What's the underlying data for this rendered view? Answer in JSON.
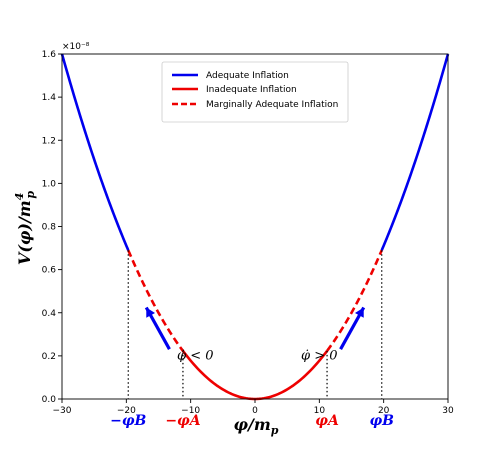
{
  "chart_data": {
    "type": "line",
    "x_range": [
      -30,
      30
    ],
    "y_range": [
      0,
      1.6e-08
    ],
    "y_scale_label": "×10⁻⁸",
    "xlabel": "φ/m_p",
    "ylabel": "V(φ)/m_p⁴",
    "x_ticks": [
      -30,
      -20,
      -10,
      0,
      10,
      20,
      30
    ],
    "x_tick_labels": [
      "−30",
      "−20",
      "−10",
      "0",
      "10",
      "20",
      "30"
    ],
    "y_ticks": [
      0,
      0.2,
      0.4,
      0.6,
      0.8,
      1.0,
      1.2,
      1.4,
      1.6
    ],
    "y_tick_labels": [
      "0.0",
      "0.2",
      "0.4",
      "0.6",
      "0.8",
      "1.0",
      "1.2",
      "1.4",
      "1.6"
    ],
    "potential": "V = 1.778e-11 · φ²",
    "phi_A": 11.2,
    "phi_B": 19.7,
    "series": [
      {
        "name": "Adequate Inflation",
        "color": "#0000ee",
        "style": "solid",
        "segments": [
          [
            -30,
            -19.7
          ],
          [
            19.7,
            30
          ]
        ]
      },
      {
        "name": "Inadequate Inflation",
        "color": "#ee0000",
        "style": "solid",
        "segments": [
          [
            -11.2,
            11.2
          ]
        ]
      },
      {
        "name": "Marginally Adequate Inflation",
        "color": "#ee0000",
        "style": "dashed",
        "segments": [
          [
            -19.7,
            -11.2
          ],
          [
            11.2,
            19.7
          ]
        ]
      }
    ],
    "annotations": [
      {
        "text": "φ̇ < 0",
        "x": -11.5,
        "y": 0.24,
        "color": "#000000"
      },
      {
        "text": "φ̇ > 0",
        "x": 11.5,
        "y": 0.24,
        "color": "#000000"
      }
    ],
    "marker_labels": [
      {
        "text": "−φB",
        "x": -19.7,
        "color": "#0000ee"
      },
      {
        "text": "−φA",
        "x": -11.2,
        "color": "#ee0000"
      },
      {
        "text": "φA",
        "x": 11.2,
        "color": "#ee0000"
      },
      {
        "text": "φB",
        "x": 19.7,
        "color": "#0000ee"
      }
    ],
    "legend_position": "top-center"
  }
}
